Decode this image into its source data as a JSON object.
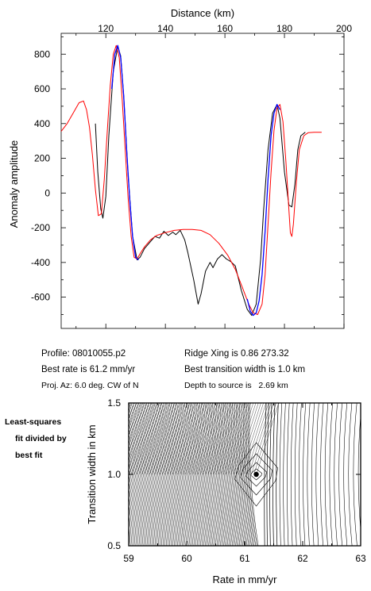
{
  "chart_data": [
    {
      "type": "line",
      "xlabel": "Distance (km)",
      "ylabel": "Anomaly amplitude",
      "xlim": [
        105,
        200
      ],
      "ylim": [
        -780,
        920
      ],
      "xticks": [
        120,
        140,
        160,
        180,
        200
      ],
      "yticks": [
        -600,
        -400,
        -200,
        0,
        200,
        400,
        600,
        800
      ],
      "x_axis_position": "top",
      "grid": false,
      "series": [
        {
          "color": "#000000",
          "x": [
            116.5,
            117.3,
            118.3,
            119.0,
            120.0,
            121.0,
            122.5,
            124.0,
            125.0,
            126.0,
            127.5,
            129.0,
            130.5,
            131.5,
            133.0,
            135.0,
            136.5,
            138.0,
            139.5,
            141.0,
            142.5,
            143.5,
            145.0,
            146.5,
            147.5,
            149.5,
            151.0,
            152.0,
            153.5,
            155.0,
            156.0,
            157.5,
            159.0,
            160.5,
            162.0,
            163.5,
            165.5,
            167.5,
            169.0,
            170.5,
            172.0,
            173.0,
            174.5,
            176.0,
            177.5,
            178.5,
            180.0,
            181.5,
            182.5,
            183.5,
            184.5,
            185.5,
            187.0
          ],
          "values": [
            400,
            120,
            -90,
            -145,
            -20,
            330,
            700,
            845,
            790,
            560,
            100,
            -250,
            -385,
            -370,
            -320,
            -280,
            -250,
            -260,
            -220,
            -245,
            -225,
            -240,
            -215,
            -270,
            -340,
            -500,
            -640,
            -580,
            -450,
            -400,
            -430,
            -380,
            -355,
            -380,
            -395,
            -420,
            -560,
            -670,
            -705,
            -640,
            -380,
            -100,
            250,
            460,
            510,
            430,
            120,
            -70,
            -80,
            50,
            250,
            330,
            350
          ]
        },
        {
          "color": "#ff0000",
          "x": [
            105.0,
            107.0,
            109.0,
            111.0,
            112.5,
            113.5,
            114.5,
            115.5,
            116.5,
            117.5,
            118.5,
            119.5,
            120.5,
            121.5,
            122.5,
            123.5,
            124.5,
            125.5,
            126.5,
            127.5,
            128.5,
            129.5,
            130.5,
            131.5,
            133.0,
            135.0,
            137.0,
            140.0,
            143.0,
            146.0,
            149.0,
            152.0,
            155.0,
            158.0,
            161.0,
            163.5,
            166.0,
            168.0,
            169.5,
            171.0,
            172.5,
            173.5,
            174.5,
            175.5,
            176.5,
            177.5,
            178.5,
            179.5,
            180.5,
            181.5,
            182.0,
            182.5,
            183.0,
            184.0,
            185.0,
            186.5,
            188.0,
            190.0,
            192.5
          ],
          "values": [
            355,
            400,
            460,
            520,
            530,
            480,
            380,
            220,
            20,
            -130,
            -120,
            80,
            360,
            620,
            800,
            850,
            780,
            540,
            250,
            -30,
            -250,
            -370,
            -380,
            -350,
            -310,
            -270,
            -245,
            -228,
            -215,
            -210,
            -210,
            -215,
            -240,
            -290,
            -360,
            -440,
            -550,
            -640,
            -690,
            -700,
            -640,
            -470,
            -180,
            120,
            360,
            490,
            510,
            410,
            180,
            -100,
            -230,
            -250,
            -180,
            60,
            250,
            330,
            348,
            350,
            350
          ]
        },
        {
          "color": "#0000ff",
          "x": [
            122.0,
            123.0,
            124.0,
            125.0,
            126.0,
            127.0,
            128.0,
            129.0,
            130.0,
            131.0,
            167.5,
            168.5,
            169.5,
            170.5,
            171.5,
            172.5,
            173.5,
            174.5,
            175.5,
            176.5,
            177.5,
            178.5
          ],
          "values": [
            600,
            800,
            850,
            780,
            560,
            250,
            -30,
            -250,
            -370,
            -385,
            -610,
            -680,
            -705,
            -690,
            -620,
            -470,
            -220,
            80,
            330,
            460,
            510,
            480
          ]
        }
      ]
    },
    {
      "type": "contour",
      "xlabel": "Rate in mm/yr",
      "ylabel": "Transition width in km",
      "xlim": [
        59,
        63
      ],
      "ylim": [
        0.5,
        1.5
      ],
      "xticks": [
        "59",
        "60",
        "61",
        "62",
        "63"
      ],
      "yticks": [
        "0.5",
        "1.0",
        "1.5"
      ],
      "best_fit": {
        "rate": 61.2,
        "width": 1.0
      },
      "grid": false
    }
  ],
  "info": {
    "profile": "Profile: 08010055.p2",
    "ridge": "Ridge Xing is 0.86 273.32",
    "rate": "Best rate is 61.2 mm/yr",
    "transition": "Best transition width is 1.0 km",
    "proj": "Proj. Az: 6.0 deg. CW of N",
    "depth": "Depth to source is   2.69 km"
  },
  "side_label": [
    "Least-squares",
    "fit divided by",
    "best fit"
  ]
}
